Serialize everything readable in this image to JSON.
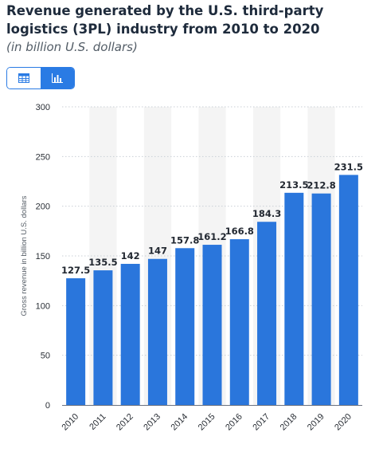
{
  "title": "Revenue generated by the U.S. third-party logistics (3PL) industry from 2010 to 2020",
  "subtitle": "(in billion U.S. dollars)",
  "toggle": {
    "table_icon": "table-icon",
    "chart_icon": "bar-chart-icon",
    "active": "chart"
  },
  "colors": {
    "bar": "#2a76dc",
    "accent": "#2a7be4",
    "grid": "#c9cfd6",
    "band": "#f4f4f4"
  },
  "chart_data": {
    "type": "bar",
    "categories": [
      "2010",
      "2011",
      "2012",
      "2013",
      "2014",
      "2015",
      "2016",
      "2017",
      "2018",
      "2019",
      "2020"
    ],
    "values": [
      127.5,
      135.5,
      142,
      147,
      157.8,
      161.2,
      166.8,
      184.3,
      213.5,
      212.8,
      231.5
    ],
    "value_labels": [
      "127.5",
      "135.5",
      "142",
      "147",
      "157.8",
      "161.2",
      "166.8",
      "184.3",
      "213.5",
      "212.8",
      "231.5"
    ],
    "ylabel": "Gross revenue in billion U.S. dollars",
    "xlabel": "",
    "ylim": [
      0,
      300
    ],
    "yticks": [
      0,
      50,
      100,
      150,
      200,
      250,
      300
    ],
    "grid": true
  }
}
